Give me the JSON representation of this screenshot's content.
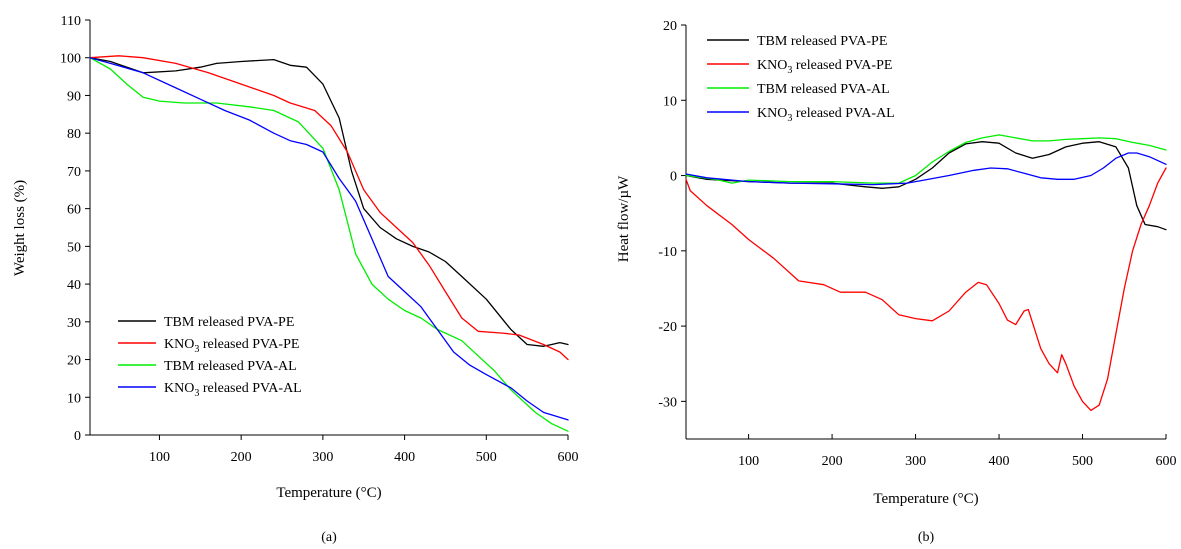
{
  "chart_data": [
    {
      "type": "line",
      "panel_label": "(a)",
      "xlabel": "Temperature (°C)",
      "ylabel": "Weight loss (%)",
      "xlim": [
        15,
        600
      ],
      "ylim": [
        0,
        110
      ],
      "xticks": [
        100,
        200,
        300,
        400,
        500,
        600
      ],
      "yticks": [
        0,
        10,
        20,
        30,
        40,
        50,
        60,
        70,
        80,
        90,
        100,
        110
      ],
      "grid": false,
      "legend_position": "bottom-left",
      "series": [
        {
          "name": "TBM released PVA-PE",
          "name_main": "TBM released PVA-PE",
          "name_sub": "",
          "name_rest": "",
          "color": "#000000",
          "points": [
            [
              15,
              100
            ],
            [
              40,
              99
            ],
            [
              80,
              96
            ],
            [
              120,
              96.5
            ],
            [
              150,
              97.5
            ],
            [
              170,
              98.5
            ],
            [
              200,
              99
            ],
            [
              240,
              99.5
            ],
            [
              260,
              98
            ],
            [
              280,
              97.5
            ],
            [
              300,
              93
            ],
            [
              320,
              84
            ],
            [
              335,
              70
            ],
            [
              350,
              60
            ],
            [
              370,
              55
            ],
            [
              390,
              52
            ],
            [
              410,
              50
            ],
            [
              430,
              48.5
            ],
            [
              450,
              46
            ],
            [
              470,
              42
            ],
            [
              500,
              36
            ],
            [
              530,
              28
            ],
            [
              550,
              24
            ],
            [
              570,
              23.5
            ],
            [
              580,
              24
            ],
            [
              590,
              24.5
            ],
            [
              600,
              24
            ]
          ]
        },
        {
          "name": "KNO3 released PVA-PE",
          "name_main": "KNO",
          "name_sub": "3",
          "name_rest": " released PVA-PE",
          "color": "#ff0000",
          "points": [
            [
              15,
              100
            ],
            [
              50,
              100.5
            ],
            [
              80,
              100
            ],
            [
              120,
              98.5
            ],
            [
              160,
              96
            ],
            [
              200,
              93
            ],
            [
              240,
              90
            ],
            [
              260,
              88
            ],
            [
              290,
              86
            ],
            [
              310,
              82
            ],
            [
              330,
              75
            ],
            [
              350,
              65
            ],
            [
              370,
              59
            ],
            [
              390,
              55
            ],
            [
              410,
              51
            ],
            [
              430,
              45
            ],
            [
              450,
              38
            ],
            [
              470,
              31
            ],
            [
              490,
              27.5
            ],
            [
              520,
              27
            ],
            [
              540,
              26.5
            ],
            [
              570,
              24
            ],
            [
              590,
              22
            ],
            [
              600,
              20
            ]
          ]
        },
        {
          "name": "TBM released PVA-AL",
          "name_main": "TBM released PVA-AL",
          "name_sub": "",
          "name_rest": "",
          "color": "#00ee00",
          "points": [
            [
              15,
              100
            ],
            [
              40,
              97
            ],
            [
              60,
              93
            ],
            [
              80,
              89.5
            ],
            [
              100,
              88.5
            ],
            [
              130,
              88
            ],
            [
              170,
              88
            ],
            [
              210,
              87
            ],
            [
              240,
              86
            ],
            [
              270,
              83
            ],
            [
              300,
              76
            ],
            [
              320,
              65
            ],
            [
              340,
              48
            ],
            [
              360,
              40
            ],
            [
              380,
              36
            ],
            [
              400,
              33
            ],
            [
              420,
              31
            ],
            [
              440,
              28
            ],
            [
              470,
              25
            ],
            [
              490,
              21
            ],
            [
              510,
              17
            ],
            [
              530,
              12
            ],
            [
              560,
              6
            ],
            [
              580,
              3
            ],
            [
              600,
              1
            ]
          ]
        },
        {
          "name": "KNO3 released PVA-AL",
          "name_main": "KNO",
          "name_sub": "3",
          "name_rest": " released PVA-AL",
          "color": "#0000ff",
          "points": [
            [
              15,
              100
            ],
            [
              40,
              98.5
            ],
            [
              80,
              96
            ],
            [
              120,
              92
            ],
            [
              150,
              89
            ],
            [
              180,
              86
            ],
            [
              210,
              83.5
            ],
            [
              240,
              80
            ],
            [
              260,
              78
            ],
            [
              280,
              77
            ],
            [
              300,
              75
            ],
            [
              320,
              68
            ],
            [
              340,
              62
            ],
            [
              360,
              52
            ],
            [
              380,
              42
            ],
            [
              400,
              38
            ],
            [
              420,
              34
            ],
            [
              440,
              28
            ],
            [
              460,
              22
            ],
            [
              480,
              18.5
            ],
            [
              500,
              16
            ],
            [
              530,
              12.5
            ],
            [
              550,
              9
            ],
            [
              570,
              6
            ],
            [
              600,
              4
            ]
          ]
        }
      ]
    },
    {
      "type": "line",
      "panel_label": "(b)",
      "xlabel": "Temperature (°C)",
      "ylabel": "Heat flow/µW",
      "xlim": [
        25,
        600
      ],
      "ylim": [
        -35,
        20
      ],
      "xticks": [
        100,
        200,
        300,
        400,
        500,
        600
      ],
      "yticks": [
        20,
        10,
        0,
        -10,
        -20,
        -30
      ],
      "grid": false,
      "legend_position": "top-left",
      "series": [
        {
          "name": "TBM released PVA-PE",
          "name_main": "TBM released PVA-PE",
          "name_sub": "",
          "name_rest": "",
          "color": "#000000",
          "points": [
            [
              25,
              0
            ],
            [
              50,
              -0.5
            ],
            [
              100,
              -0.8
            ],
            [
              150,
              -1
            ],
            [
              200,
              -1
            ],
            [
              240,
              -1.5
            ],
            [
              260,
              -1.7
            ],
            [
              280,
              -1.5
            ],
            [
              300,
              -0.5
            ],
            [
              320,
              1
            ],
            [
              340,
              3
            ],
            [
              360,
              4.2
            ],
            [
              380,
              4.5
            ],
            [
              400,
              4.3
            ],
            [
              420,
              3
            ],
            [
              440,
              2.3
            ],
            [
              460,
              2.8
            ],
            [
              480,
              3.8
            ],
            [
              500,
              4.3
            ],
            [
              520,
              4.5
            ],
            [
              540,
              3.8
            ],
            [
              555,
              1
            ],
            [
              565,
              -4
            ],
            [
              575,
              -6.5
            ],
            [
              590,
              -6.8
            ],
            [
              600,
              -7.2
            ]
          ]
        },
        {
          "name": "KNO3 released PVA-PE",
          "name_main": "KNO",
          "name_sub": "3",
          "name_rest": " released PVA-PE",
          "color": "#ff0000",
          "points": [
            [
              25,
              -0.5
            ],
            [
              30,
              -2
            ],
            [
              50,
              -4
            ],
            [
              80,
              -6.5
            ],
            [
              100,
              -8.5
            ],
            [
              130,
              -11
            ],
            [
              160,
              -14
            ],
            [
              190,
              -14.5
            ],
            [
              210,
              -15.5
            ],
            [
              240,
              -15.5
            ],
            [
              260,
              -16.5
            ],
            [
              280,
              -18.5
            ],
            [
              300,
              -19
            ],
            [
              320,
              -19.3
            ],
            [
              340,
              -18
            ],
            [
              360,
              -15.5
            ],
            [
              375,
              -14.2
            ],
            [
              385,
              -14.5
            ],
            [
              400,
              -17
            ],
            [
              410,
              -19.2
            ],
            [
              420,
              -19.8
            ],
            [
              430,
              -18
            ],
            [
              435,
              -17.8
            ],
            [
              440,
              -19.5
            ],
            [
              450,
              -23
            ],
            [
              460,
              -25
            ],
            [
              470,
              -26.2
            ],
            [
              475,
              -23.8
            ],
            [
              480,
              -25
            ],
            [
              490,
              -28
            ],
            [
              500,
              -30
            ],
            [
              510,
              -31.2
            ],
            [
              520,
              -30.5
            ],
            [
              530,
              -27
            ],
            [
              540,
              -21
            ],
            [
              550,
              -15
            ],
            [
              560,
              -10
            ],
            [
              570,
              -6.5
            ],
            [
              580,
              -4
            ],
            [
              590,
              -1
            ],
            [
              600,
              1
            ]
          ]
        },
        {
          "name": "TBM released PVA-AL",
          "name_main": "TBM released PVA-AL",
          "name_sub": "",
          "name_rest": "",
          "color": "#00ee00",
          "points": [
            [
              25,
              0
            ],
            [
              60,
              -0.5
            ],
            [
              80,
              -1
            ],
            [
              100,
              -0.6
            ],
            [
              150,
              -0.8
            ],
            [
              200,
              -0.8
            ],
            [
              250,
              -1
            ],
            [
              280,
              -1
            ],
            [
              300,
              0
            ],
            [
              320,
              1.8
            ],
            [
              340,
              3.2
            ],
            [
              360,
              4.4
            ],
            [
              380,
              5
            ],
            [
              400,
              5.4
            ],
            [
              420,
              5
            ],
            [
              440,
              4.6
            ],
            [
              460,
              4.6
            ],
            [
              480,
              4.8
            ],
            [
              500,
              4.9
            ],
            [
              520,
              5
            ],
            [
              540,
              4.9
            ],
            [
              560,
              4.4
            ],
            [
              580,
              4
            ],
            [
              600,
              3.4
            ]
          ]
        },
        {
          "name": "KNO3 released PVA-AL",
          "name_main": "KNO",
          "name_sub": "3",
          "name_rest": " released PVA-AL",
          "color": "#0000ff",
          "points": [
            [
              25,
              0.2
            ],
            [
              50,
              -0.3
            ],
            [
              100,
              -0.8
            ],
            [
              150,
              -1
            ],
            [
              200,
              -1.1
            ],
            [
              250,
              -1.2
            ],
            [
              290,
              -1
            ],
            [
              310,
              -0.6
            ],
            [
              340,
              0
            ],
            [
              370,
              0.7
            ],
            [
              390,
              1
            ],
            [
              410,
              0.9
            ],
            [
              430,
              0.3
            ],
            [
              450,
              -0.3
            ],
            [
              470,
              -0.5
            ],
            [
              490,
              -0.5
            ],
            [
              510,
              0
            ],
            [
              525,
              1
            ],
            [
              540,
              2.3
            ],
            [
              555,
              3
            ],
            [
              565,
              3
            ],
            [
              580,
              2.5
            ],
            [
              600,
              1.5
            ]
          ]
        }
      ]
    }
  ]
}
